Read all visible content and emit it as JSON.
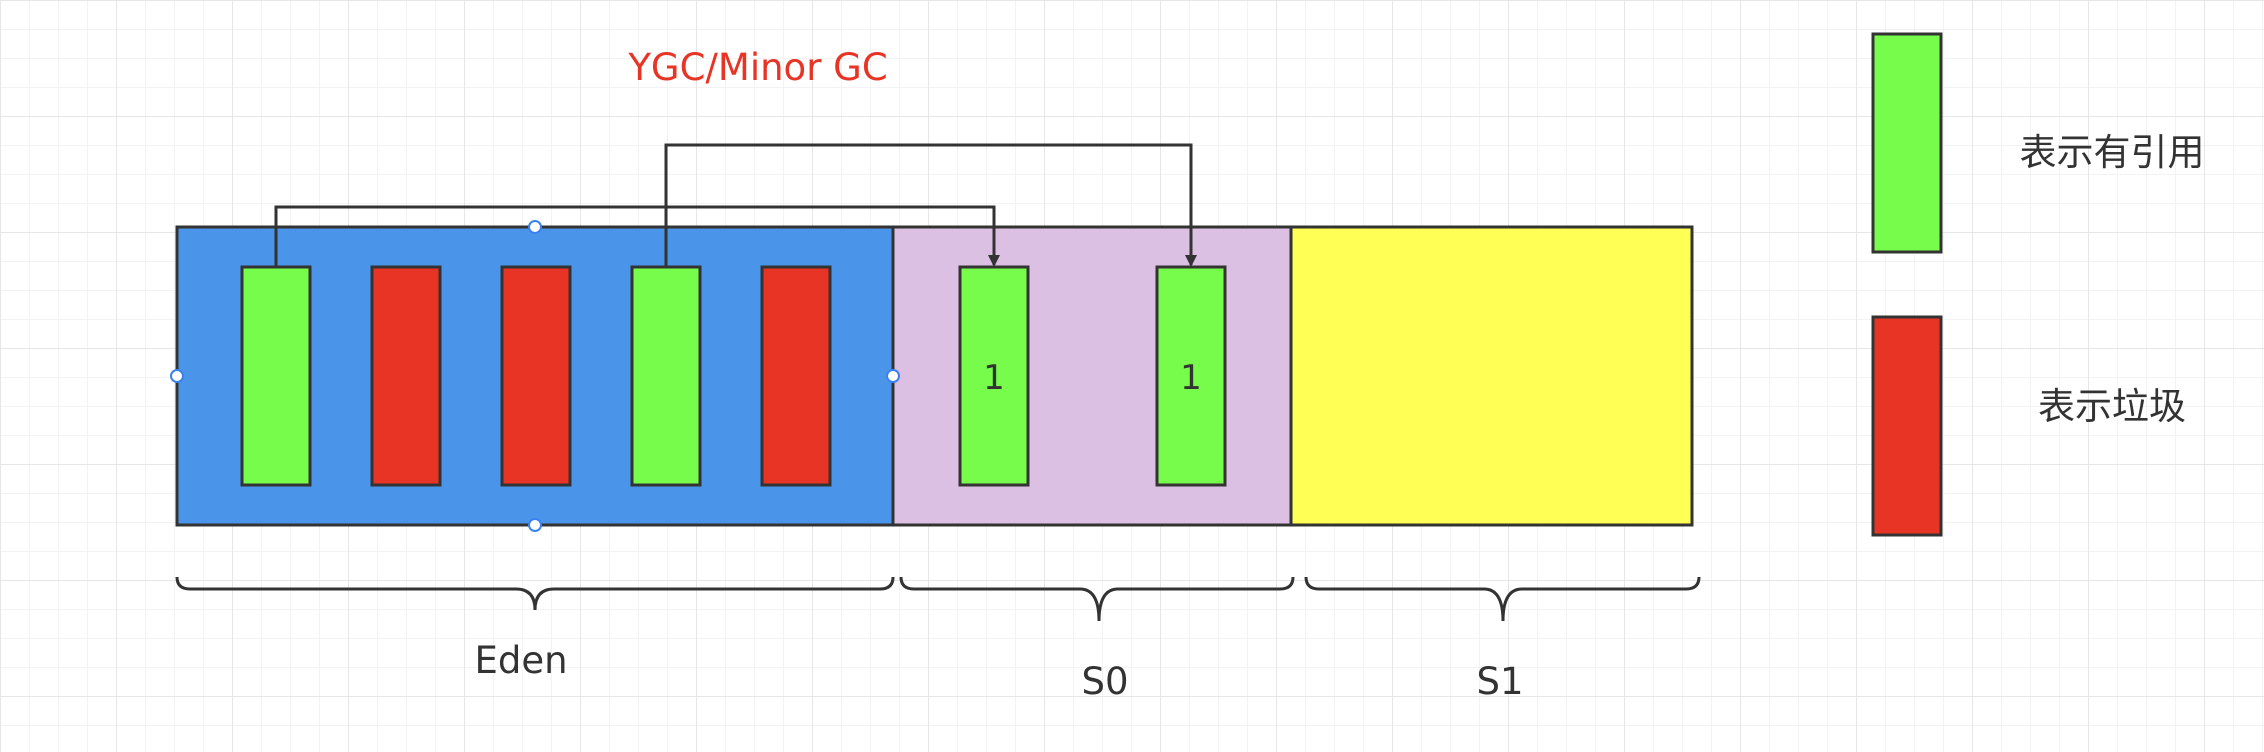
{
  "title": "YGC/Minor GC",
  "regions": {
    "eden": {
      "label": "Eden",
      "color": "#4a94ea"
    },
    "s0": {
      "label": "S0",
      "color": "#dcc0e3"
    },
    "s1": {
      "label": "S1",
      "color": "#ffff55"
    }
  },
  "objects": {
    "eden": [
      "referenced",
      "garbage",
      "garbage",
      "referenced",
      "garbage"
    ],
    "s0": [
      {
        "type": "referenced",
        "age": "1"
      },
      {
        "type": "referenced",
        "age": "1"
      }
    ]
  },
  "legend": {
    "referenced": {
      "label": "表示有引用",
      "color": "#77fc4c"
    },
    "garbage": {
      "label": "表示垃圾",
      "color": "#e83425"
    }
  },
  "title_color": "#e83425"
}
